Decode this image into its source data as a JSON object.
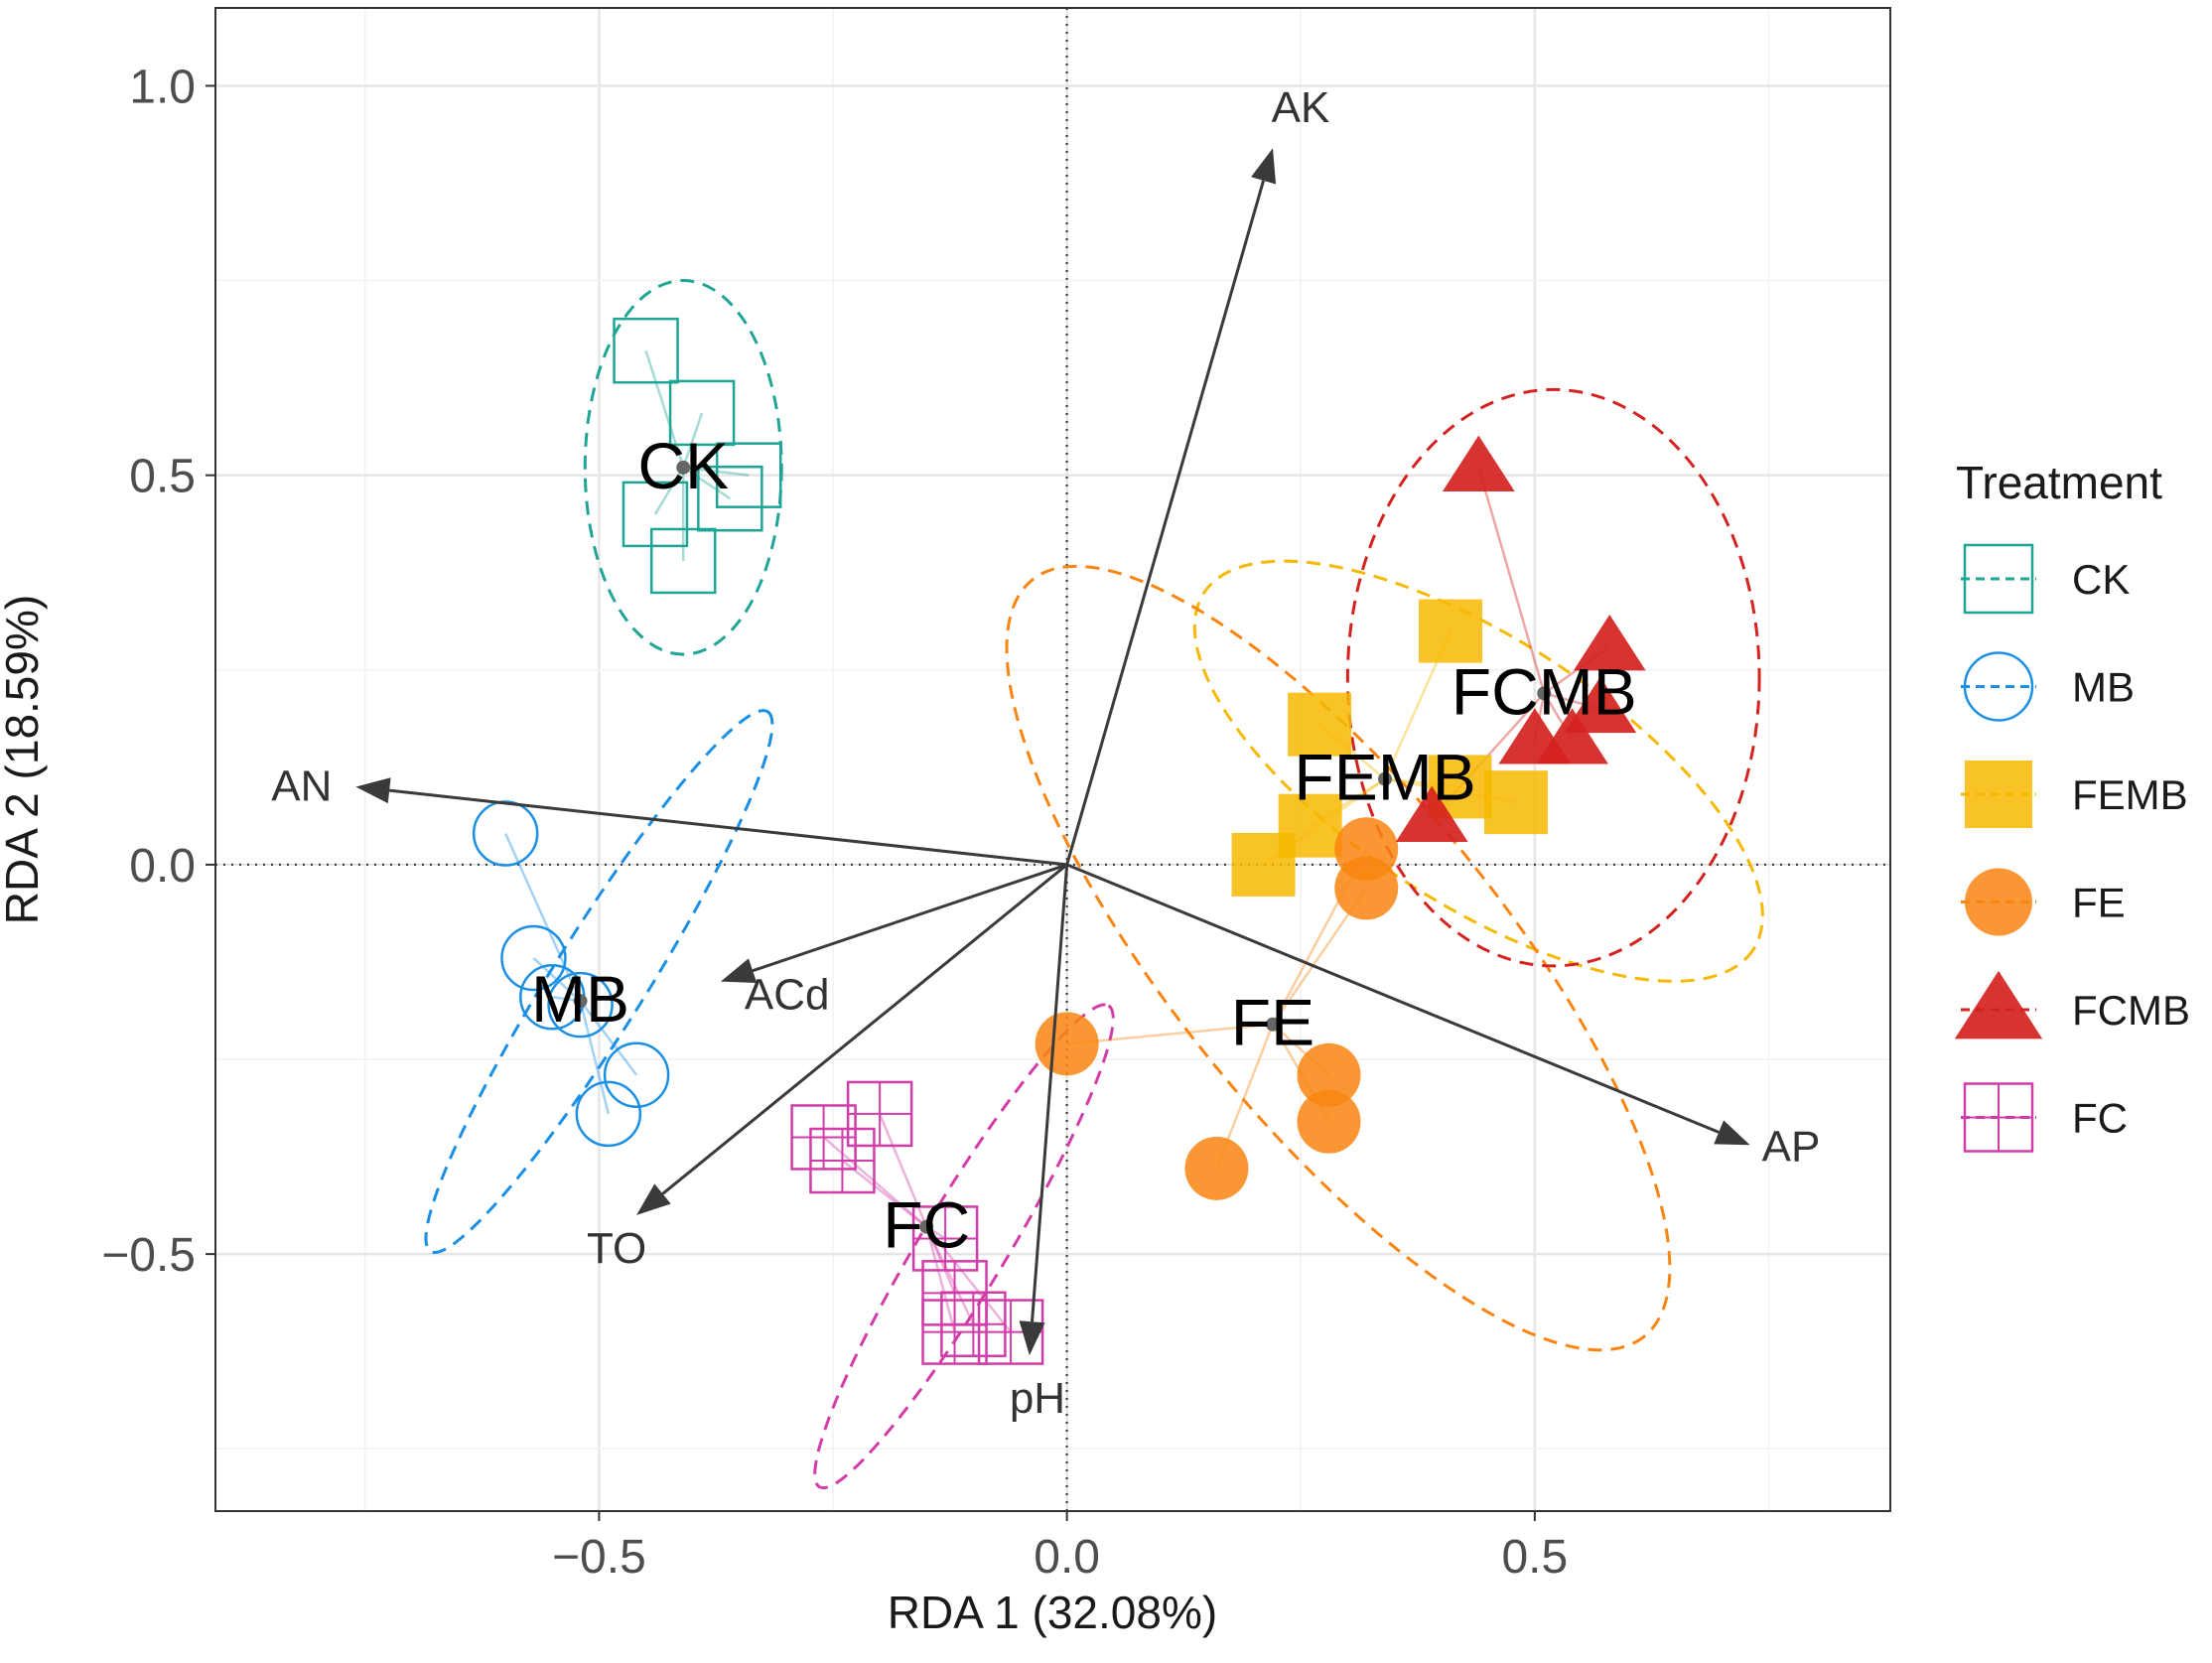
{
  "chart_data": {
    "type": "scatter",
    "subtype": "RDA biplot",
    "xlabel": "RDA 1 (32.08%)",
    "ylabel": "RDA 2 (18.59%)",
    "xlim": [
      -0.91,
      0.88
    ],
    "ylim": [
      -0.83,
      1.1
    ],
    "xticks": [
      -0.5,
      0.0,
      0.5
    ],
    "yticks": [
      -0.5,
      0.0,
      0.5,
      1.0
    ],
    "xtick_labels": [
      "−0.5",
      "0.0",
      "0.5"
    ],
    "ytick_labels": [
      "−0.5",
      "0.0",
      "0.5",
      "1.0"
    ],
    "grid": true,
    "zero_lines": "dotted",
    "legend": {
      "title": "Treatment",
      "position": "right",
      "entries": [
        "CK",
        "MB",
        "FEMB",
        "FE",
        "FCMB",
        "FC"
      ]
    },
    "groups": [
      {
        "name": "CK",
        "marker": "open-square",
        "color": "#1fa596",
        "centroid": [
          -0.41,
          0.51
        ],
        "points": [
          [
            -0.45,
            0.66
          ],
          [
            -0.39,
            0.58
          ],
          [
            -0.34,
            0.5
          ],
          [
            -0.36,
            0.47
          ],
          [
            -0.44,
            0.45
          ],
          [
            -0.41,
            0.39
          ]
        ],
        "ellipse": {
          "center": [
            -0.41,
            0.51
          ],
          "rx": 0.105,
          "ry": 0.24,
          "rotation_deg": 0
        }
      },
      {
        "name": "MB",
        "marker": "open-circle",
        "color": "#1a8fe3",
        "centroid": [
          -0.52,
          -0.175
        ],
        "points": [
          [
            -0.6,
            0.04
          ],
          [
            -0.57,
            -0.12
          ],
          [
            -0.55,
            -0.17
          ],
          [
            -0.52,
            -0.18
          ],
          [
            -0.46,
            -0.27
          ],
          [
            -0.49,
            -0.32
          ]
        ],
        "ellipse": {
          "center": [
            -0.5,
            -0.15
          ],
          "rx": 0.34,
          "ry": 0.06,
          "rotation_deg": 58
        }
      },
      {
        "name": "FEMB",
        "marker": "filled-square",
        "color": "#f6b800",
        "centroid": [
          0.34,
          0.11
        ],
        "points": [
          [
            0.41,
            0.3
          ],
          [
            0.27,
            0.18
          ],
          [
            0.26,
            0.05
          ],
          [
            0.21,
            0.0
          ],
          [
            0.42,
            0.1
          ],
          [
            0.48,
            0.08
          ]
        ],
        "ellipse": {
          "center": [
            0.44,
            0.12
          ],
          "rx": 0.35,
          "ry": 0.17,
          "rotation_deg": -33
        }
      },
      {
        "name": "FE",
        "marker": "filled-circle",
        "color": "#f98510",
        "centroid": [
          0.22,
          -0.205
        ],
        "points": [
          [
            0.0,
            -0.23
          ],
          [
            0.16,
            -0.39
          ],
          [
            0.28,
            -0.27
          ],
          [
            0.28,
            -0.33
          ],
          [
            0.32,
            0.02
          ],
          [
            0.32,
            -0.03
          ]
        ],
        "ellipse": {
          "center": [
            0.29,
            -0.12
          ],
          "rx": 0.52,
          "ry": 0.21,
          "rotation_deg": -51
        }
      },
      {
        "name": "FCMB",
        "marker": "filled-triangle",
        "color": "#d4221f",
        "centroid": [
          0.51,
          0.22
        ],
        "points": [
          [
            0.44,
            0.51
          ],
          [
            0.58,
            0.28
          ],
          [
            0.57,
            0.2
          ],
          [
            0.5,
            0.16
          ],
          [
            0.54,
            0.16
          ],
          [
            0.39,
            0.06
          ]
        ],
        "ellipse": {
          "center": [
            0.52,
            0.24
          ],
          "rx": 0.22,
          "ry": 0.37,
          "rotation_deg": 0
        }
      },
      {
        "name": "FC",
        "marker": "crossed-square",
        "color": "#d23ca9",
        "centroid": [
          -0.15,
          -0.465
        ],
        "points": [
          [
            -0.26,
            -0.35
          ],
          [
            -0.2,
            -0.32
          ],
          [
            -0.24,
            -0.38
          ],
          [
            -0.13,
            -0.48
          ],
          [
            -0.12,
            -0.55
          ],
          [
            -0.1,
            -0.59
          ],
          [
            -0.12,
            -0.6
          ],
          [
            -0.06,
            -0.6
          ]
        ],
        "ellipse": {
          "center": [
            -0.11,
            -0.49
          ],
          "rx": 0.3,
          "ry": 0.055,
          "rotation_deg": 59
        }
      }
    ],
    "arrows": [
      {
        "name": "AK",
        "x": 0.22,
        "y": 0.92,
        "label": "AK"
      },
      {
        "name": "AN",
        "x": -0.76,
        "y": 0.1,
        "label": "AN"
      },
      {
        "name": "ACd",
        "x": -0.37,
        "y": -0.15,
        "label": "ACd"
      },
      {
        "name": "TO",
        "x": -0.46,
        "y": -0.45,
        "label": "TO"
      },
      {
        "name": "pH",
        "x": -0.04,
        "y": -0.63,
        "label": "pH"
      },
      {
        "name": "AP",
        "x": 0.73,
        "y": -0.36,
        "label": "AP"
      }
    ]
  }
}
